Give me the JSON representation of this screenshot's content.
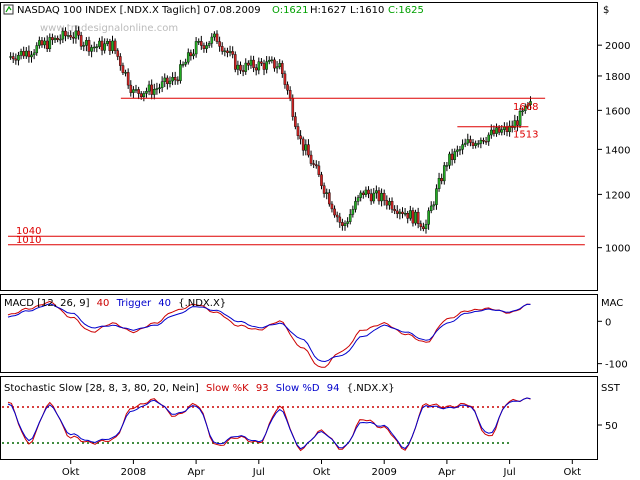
{
  "header": {
    "title": "NASDAQ 100 INDEX [.NDX.X  Taglich] 07.08.2009",
    "ohlc": [
      {
        "text": "O:1621",
        "color": "#00a000"
      },
      {
        "text": "H:1627",
        "color": "#000000"
      },
      {
        "text": "L:1610",
        "color": "#000000"
      },
      {
        "text": "C:1625",
        "color": "#00a000"
      }
    ],
    "currency": "$",
    "watermark": "www.tradesignalonline.com"
  },
  "chart_data": [
    {
      "id": "price",
      "type": "candlestick",
      "title": "NASDAQ 100 INDEX [.NDX.X  Taglich] 07.08.2009",
      "ylim": [
        880,
        2180
      ],
      "yscale": "log",
      "yticks": [
        2000,
        1800,
        1600,
        1400,
        1200,
        1000
      ],
      "grid": false,
      "x_labels": [
        "Okt",
        "2008",
        "Apr",
        "Jul",
        "Okt",
        "2009",
        "Apr",
        "Jul",
        "Okt"
      ],
      "x_label_month_index": [
        3,
        6,
        9,
        12,
        15,
        18,
        21,
        24,
        27
      ],
      "monthly_closes": [
        {
          "date": "2007-07",
          "close": 1920
        },
        {
          "date": "2007-08",
          "close": 1960
        },
        {
          "date": "2007-09",
          "close": 2020
        },
        {
          "date": "2007-10",
          "close": 2080
        },
        {
          "date": "2007-11",
          "close": 1990
        },
        {
          "date": "2007-12",
          "close": 2000
        },
        {
          "date": "2008-01",
          "close": 1700
        },
        {
          "date": "2008-02",
          "close": 1720
        },
        {
          "date": "2008-03",
          "close": 1780
        },
        {
          "date": "2008-04",
          "close": 1990
        },
        {
          "date": "2008-05",
          "close": 2050
        },
        {
          "date": "2008-06",
          "close": 1850
        },
        {
          "date": "2008-07",
          "close": 1870
        },
        {
          "date": "2008-08",
          "close": 1870
        },
        {
          "date": "2008-09",
          "close": 1440
        },
        {
          "date": "2008-10",
          "close": 1250
        },
        {
          "date": "2008-11",
          "close": 1070
        },
        {
          "date": "2008-12",
          "close": 1210
        },
        {
          "date": "2009-01",
          "close": 1180
        },
        {
          "date": "2009-02",
          "close": 1130
        },
        {
          "date": "2009-03",
          "close": 1080
        },
        {
          "date": "2009-04",
          "close": 1340
        },
        {
          "date": "2009-05",
          "close": 1430
        },
        {
          "date": "2009-06",
          "close": 1470
        },
        {
          "date": "2009-07",
          "close": 1500
        },
        {
          "date": "2009-08",
          "close": 1625
        }
      ],
      "hlines": [
        {
          "value": 1668,
          "label": "1668",
          "month_from": 5.4,
          "month_to": 25.7
        },
        {
          "value": 1513,
          "label": "1513",
          "month_from": 21.5,
          "month_to": 24.9
        },
        {
          "value": 1040,
          "label": "1040",
          "month_from": 0,
          "month_to": 27.6
        },
        {
          "value": 1010,
          "label": "1010",
          "month_from": 0,
          "month_to": 27.6
        }
      ]
    },
    {
      "id": "macd",
      "type": "line",
      "title": "MACD [12, 26, 9]",
      "title_value": "40",
      "trigger_label": "Trigger",
      "trigger_value": "40",
      "symbol": "{.NDX.X}",
      "ylim": [
        -115,
        55
      ],
      "yticks": [
        0,
        -100
      ],
      "side_label": "MAC",
      "series": [
        {
          "name": "MACD",
          "color": "#cc0000",
          "values": [
            15,
            30,
            45,
            10,
            -25,
            -5,
            -25,
            -5,
            25,
            40,
            20,
            -10,
            -20,
            0,
            -60,
            -110,
            -70,
            -20,
            -5,
            -30,
            -50,
            5,
            25,
            30,
            20,
            40
          ]
        },
        {
          "name": "Trigger",
          "color": "#0000cc",
          "values": [
            10,
            25,
            40,
            20,
            -15,
            -10,
            -20,
            -10,
            15,
            35,
            25,
            0,
            -15,
            -5,
            -40,
            -95,
            -80,
            -35,
            -10,
            -25,
            -45,
            -5,
            20,
            28,
            22,
            40
          ]
        }
      ]
    },
    {
      "id": "stoch",
      "type": "line",
      "title": "Stochastic Slow [28, 8, 3, 80, 20, Nein]",
      "k_label": "Slow %K",
      "k_value": "93",
      "d_label": "Slow %D",
      "d_value": "94",
      "symbol": "{.NDX.X}",
      "ylim": [
        0,
        100
      ],
      "yticks": [
        50
      ],
      "side_label": "SST",
      "levels": [
        {
          "value": 80,
          "color": "#cc0000"
        },
        {
          "value": 20,
          "color": "#006600"
        }
      ],
      "series": [
        {
          "name": "Slow %K",
          "color": "#cc0000",
          "values": [
            88,
            20,
            85,
            30,
            20,
            25,
            80,
            92,
            65,
            85,
            15,
            30,
            20,
            80,
            10,
            40,
            10,
            60,
            45,
            10,
            85,
            80,
            85,
            30,
            90,
            93
          ]
        },
        {
          "name": "Slow %D",
          "color": "#0000cc",
          "values": [
            85,
            25,
            82,
            35,
            22,
            28,
            75,
            90,
            68,
            82,
            18,
            32,
            22,
            75,
            12,
            38,
            12,
            55,
            48,
            12,
            82,
            78,
            83,
            35,
            88,
            94
          ]
        }
      ]
    }
  ]
}
